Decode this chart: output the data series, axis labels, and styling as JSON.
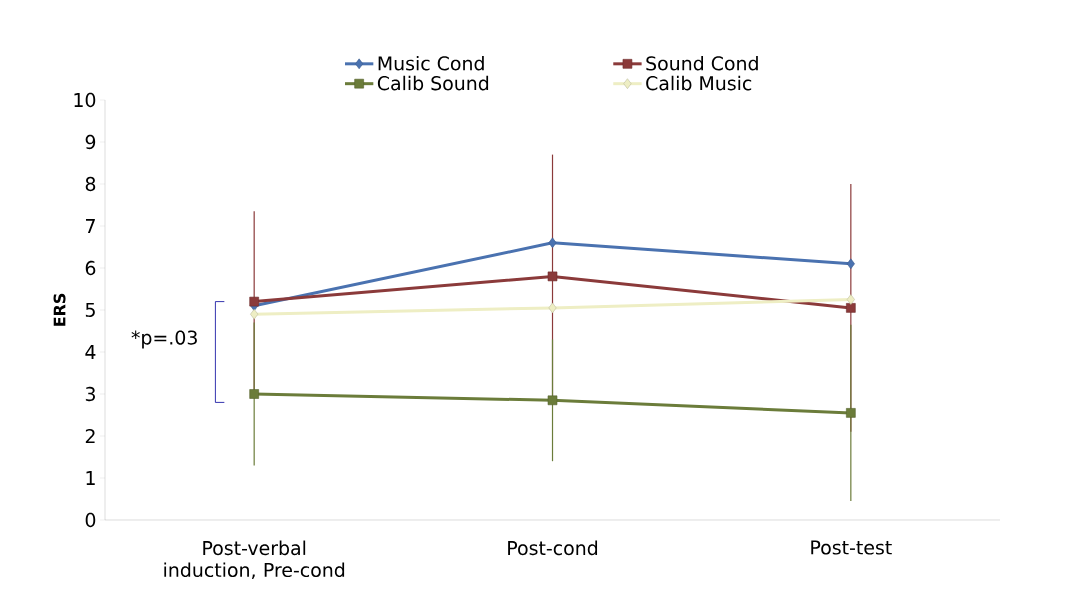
{
  "chart_data": {
    "type": "line",
    "ylabel": "ERS",
    "categories": [
      "Post-verbal induction, Pre-cond",
      "Post-cond",
      "Post-test"
    ],
    "series": [
      {
        "name": "Music Cond",
        "color": "#4a72b0",
        "marker": "diamond",
        "values": [
          5.1,
          6.6,
          6.1
        ]
      },
      {
        "name": "Sound Cond",
        "color": "#8b3a3a",
        "marker": "square",
        "values": [
          5.2,
          5.8,
          5.05
        ],
        "errors": [
          2.15,
          2.9,
          2.95
        ]
      },
      {
        "name": "Calib Sound",
        "color": "#6b7c3a",
        "marker": "square",
        "values": [
          3.0,
          2.85,
          2.55
        ],
        "errors": [
          1.7,
          1.45,
          2.1
        ]
      },
      {
        "name": "Calib Music",
        "color": "#eeeec4",
        "marker": "diamond",
        "values": [
          4.9,
          5.05,
          5.25
        ]
      }
    ],
    "ylim": [
      0,
      10
    ],
    "yticks": [
      0,
      1,
      2,
      3,
      4,
      5,
      6,
      7,
      8,
      9,
      10
    ],
    "legend": "top",
    "annotations": [
      "*p=.03"
    ]
  }
}
